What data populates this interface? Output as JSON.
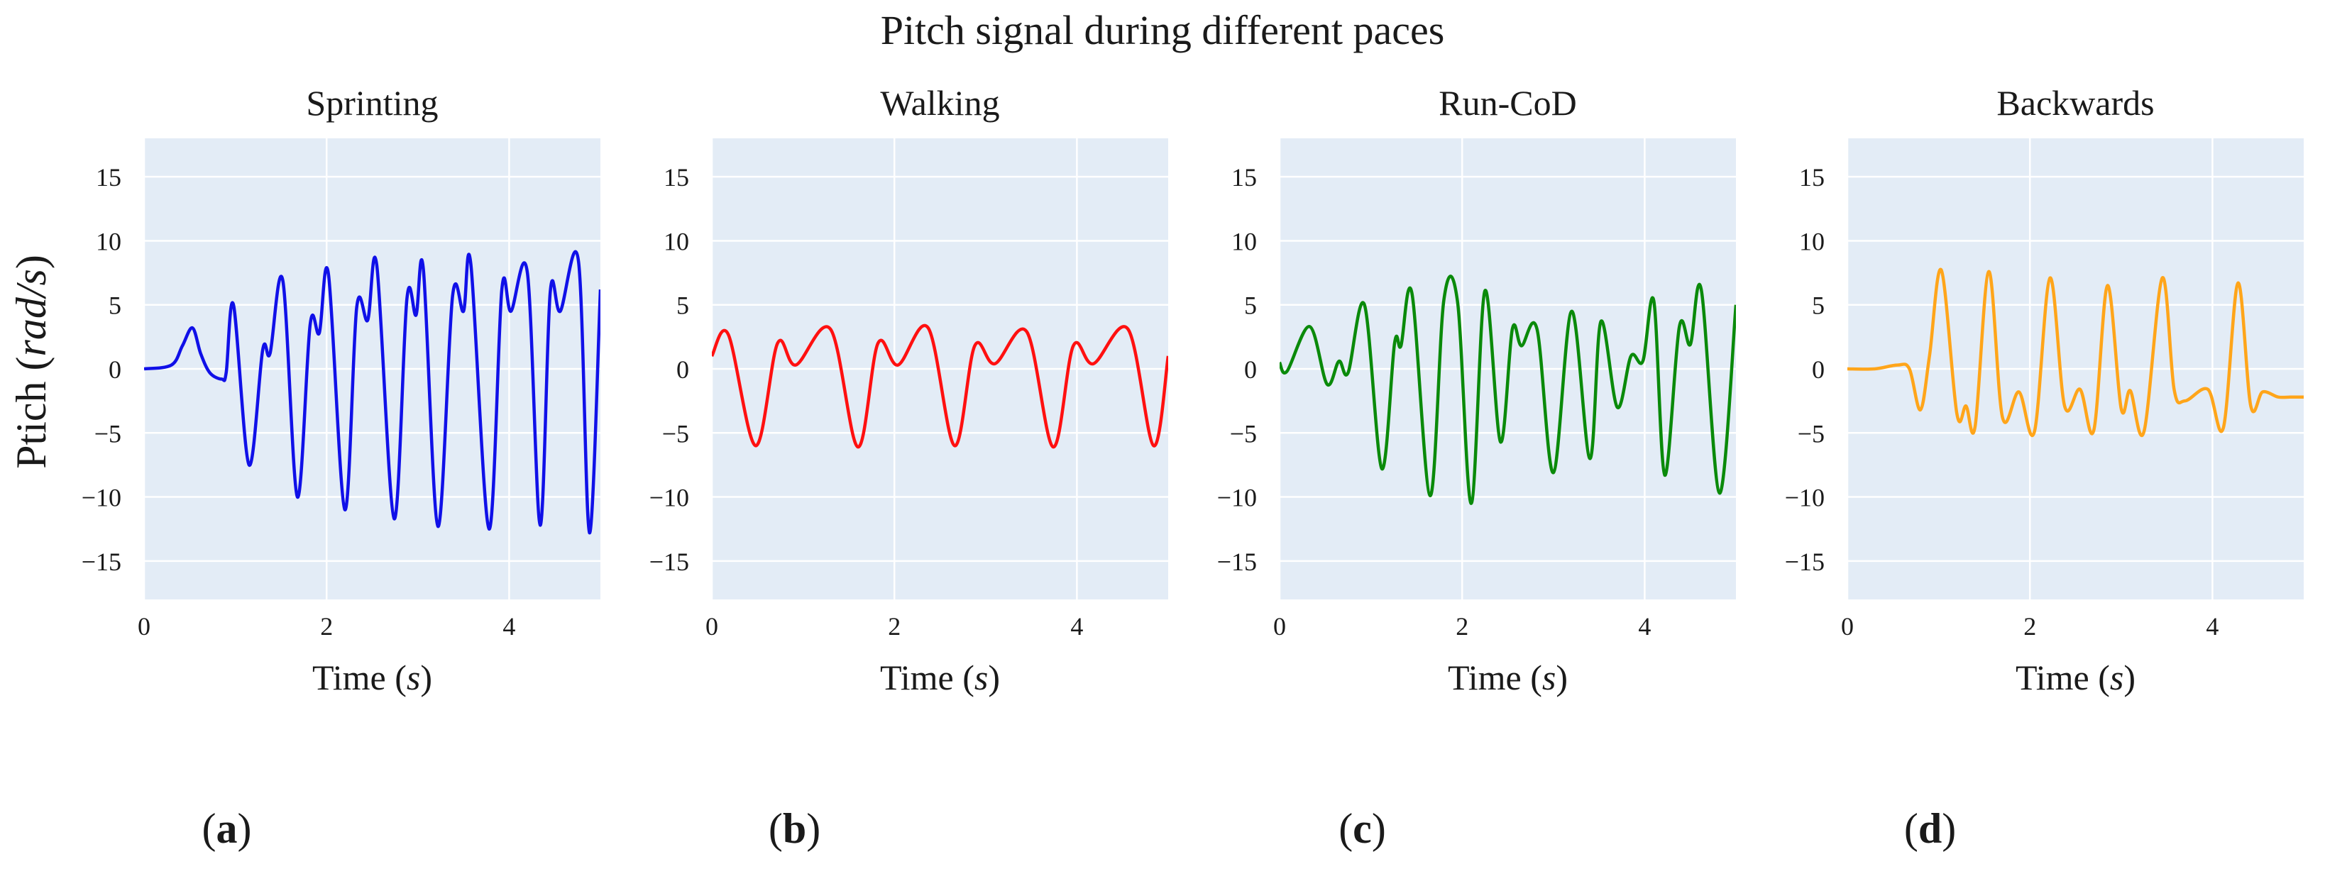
{
  "figure": {
    "title": "Pitch signal during different paces",
    "ylabel_prefix": "Ptich (",
    "ylabel_unit": "rad/s",
    "ylabel_suffix": ")",
    "xlabel_prefix": "Time (",
    "xlabel_unit": "s",
    "xlabel_suffix": ")"
  },
  "chart_data": [
    {
      "type": "line",
      "title": "Sprinting",
      "panel_label_open": "(",
      "panel_label": "a",
      "panel_label_close": ")",
      "color": "#1010e8",
      "xlim": [
        0,
        5
      ],
      "ylim": [
        -18,
        18
      ],
      "xticks": [
        0,
        2,
        4
      ],
      "yticks": [
        15,
        10,
        5,
        0,
        -5,
        -10,
        -15
      ],
      "xlabel": "Time (s)",
      "ylabel": "Ptich (rad/s)",
      "x": [
        0,
        0.3,
        0.42,
        0.53,
        0.62,
        0.72,
        0.85,
        0.9,
        0.98,
        1.15,
        1.3,
        1.38,
        1.52,
        1.68,
        1.82,
        1.92,
        2.02,
        2.2,
        2.33,
        2.45,
        2.55,
        2.74,
        2.88,
        2.98,
        3.06,
        3.22,
        3.38,
        3.5,
        3.58,
        3.78,
        3.92,
        4.02,
        4.2,
        4.34,
        4.45,
        4.56,
        4.76,
        4.88,
        5
      ],
      "values": [
        0,
        0.3,
        1.8,
        3.2,
        1.2,
        -0.3,
        -0.8,
        -0.3,
        5,
        -7.5,
        1.5,
        1.2,
        6.9,
        -10,
        3.5,
        2.8,
        7.4,
        -11,
        4.8,
        3.8,
        8.1,
        -11.7,
        5.5,
        4.2,
        7.8,
        -12.3,
        5.7,
        4.5,
        8.2,
        -12.5,
        6.2,
        4.5,
        7.5,
        -12.2,
        6,
        4.5,
        8.4,
        -12.8,
        6.2
      ]
    },
    {
      "type": "line",
      "title": "Walking",
      "panel_label_open": "(",
      "panel_label": "b",
      "panel_label_close": ")",
      "color": "#ff1010",
      "xlim": [
        0,
        5
      ],
      "ylim": [
        -18,
        18
      ],
      "xticks": [
        0,
        2,
        4
      ],
      "yticks": [
        15,
        10,
        5,
        0,
        -5,
        -10,
        -15
      ],
      "xlabel": "Time (s)",
      "ylabel": "Ptich (rad/s)",
      "x": [
        0,
        0.18,
        0.48,
        0.72,
        0.92,
        1.3,
        1.6,
        1.82,
        2.04,
        2.37,
        2.66,
        2.88,
        3.1,
        3.45,
        3.74,
        3.96,
        4.18,
        4.56,
        4.84,
        5
      ],
      "values": [
        1,
        2.7,
        -6,
        2,
        0.3,
        3.1,
        -6.1,
        2,
        0.3,
        3.2,
        -6,
        1.8,
        0.4,
        2.9,
        -6.1,
        1.8,
        0.4,
        3.1,
        -6,
        1
      ]
    },
    {
      "type": "line",
      "title": "Run-CoD",
      "panel_label_open": "(",
      "panel_label": "c",
      "panel_label_close": ")",
      "color": "#0a8a0a",
      "xlim": [
        0,
        5
      ],
      "ylim": [
        -18,
        18
      ],
      "xticks": [
        0,
        2,
        4
      ],
      "yticks": [
        15,
        10,
        5,
        0,
        -5,
        -10,
        -15
      ],
      "xlabel": "Time (s)",
      "ylabel": "Ptich (rad/s)",
      "x": [
        0,
        0.08,
        0.33,
        0.52,
        0.65,
        0.75,
        0.93,
        1.12,
        1.26,
        1.33,
        1.45,
        1.65,
        1.8,
        1.95,
        2.1,
        2.25,
        2.42,
        2.55,
        2.65,
        2.82,
        3.0,
        3.2,
        3.4,
        3.52,
        3.7,
        3.85,
        3.98,
        4.1,
        4.22,
        4.38,
        4.5,
        4.62,
        4.82,
        5
      ],
      "values": [
        0.5,
        -0.2,
        3.3,
        -1.2,
        0.6,
        -0.3,
        5,
        -7.8,
        2,
        1.8,
        5.9,
        -9.9,
        5.4,
        5.2,
        -10.5,
        6.1,
        -5.7,
        3.1,
        1.8,
        3.1,
        -8.1,
        4.5,
        -7,
        3.7,
        -3,
        1,
        0.6,
        5.3,
        -8.3,
        3.3,
        1.9,
        6.2,
        -9.7,
        5
      ]
    },
    {
      "type": "line",
      "title": "Backwards",
      "panel_label_open": "(",
      "panel_label": "d",
      "panel_label_close": ")",
      "color": "#ffa51a",
      "xlim": [
        0,
        5
      ],
      "ylim": [
        -18,
        18
      ],
      "xticks": [
        0,
        2,
        4
      ],
      "yticks": [
        15,
        10,
        5,
        0,
        -5,
        -10,
        -15
      ],
      "xlabel": "Time (s)",
      "ylabel": "Ptich (rad/s)",
      "x": [
        0,
        0.3,
        0.55,
        0.68,
        0.8,
        0.9,
        1.03,
        1.2,
        1.3,
        1.4,
        1.55,
        1.7,
        1.88,
        2.05,
        2.22,
        2.38,
        2.55,
        2.7,
        2.85,
        3.0,
        3.1,
        3.25,
        3.45,
        3.58,
        3.7,
        3.95,
        4.12,
        4.28,
        4.42,
        4.55,
        4.72,
        4.85,
        4.96,
        5
      ],
      "values": [
        0,
        0,
        0.3,
        0,
        -3.2,
        1,
        7.7,
        -3.5,
        -2.9,
        -4.5,
        7.6,
        -3.8,
        -1.8,
        -4.9,
        7.1,
        -2.9,
        -1.6,
        -4.8,
        6.5,
        -3.1,
        -1.7,
        -4.9,
        7.1,
        -1.6,
        -2.5,
        -1.6,
        -4.6,
        6.7,
        -2.9,
        -1.8,
        -2.2,
        -2.2,
        -2.2,
        -2.2
      ]
    }
  ]
}
